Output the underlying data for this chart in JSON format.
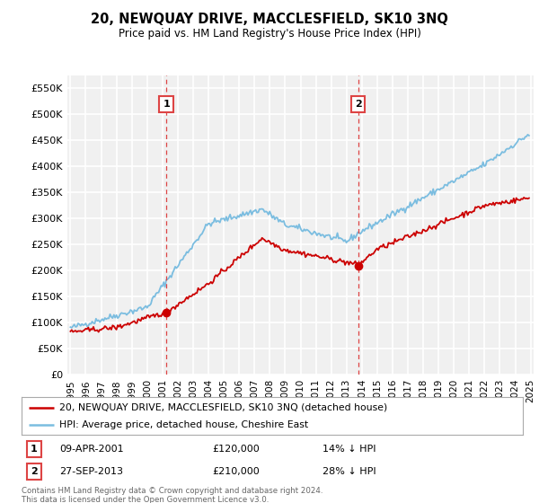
{
  "title": "20, NEWQUAY DRIVE, MACCLESFIELD, SK10 3NQ",
  "subtitle": "Price paid vs. HM Land Registry's House Price Index (HPI)",
  "ylim": [
    0,
    575000
  ],
  "yticks": [
    0,
    50000,
    100000,
    150000,
    200000,
    250000,
    300000,
    350000,
    400000,
    450000,
    500000,
    550000
  ],
  "ytick_labels": [
    "£0",
    "£50K",
    "£100K",
    "£150K",
    "£200K",
    "£250K",
    "£300K",
    "£350K",
    "£400K",
    "£450K",
    "£500K",
    "£550K"
  ],
  "hpi_color": "#7bbde0",
  "price_color": "#cc0000",
  "dashed_line_color": "#dd4444",
  "background_color": "#f0f0f0",
  "grid_color": "#ffffff",
  "legend_label_price": "20, NEWQUAY DRIVE, MACCLESFIELD, SK10 3NQ (detached house)",
  "legend_label_hpi": "HPI: Average price, detached house, Cheshire East",
  "transaction1_date": "09-APR-2001",
  "transaction1_price": "£120,000",
  "transaction1_hpi": "14% ↓ HPI",
  "transaction2_date": "27-SEP-2013",
  "transaction2_price": "£210,000",
  "transaction2_hpi": "28% ↓ HPI",
  "footer": "Contains HM Land Registry data © Crown copyright and database right 2024.\nThis data is licensed under the Open Government Licence v3.0.",
  "marker1_x": 2001.25,
  "marker1_y": 120000,
  "marker2_x": 2013.75,
  "marker2_y": 210000,
  "xmin": 1994.8,
  "xmax": 2025.2
}
